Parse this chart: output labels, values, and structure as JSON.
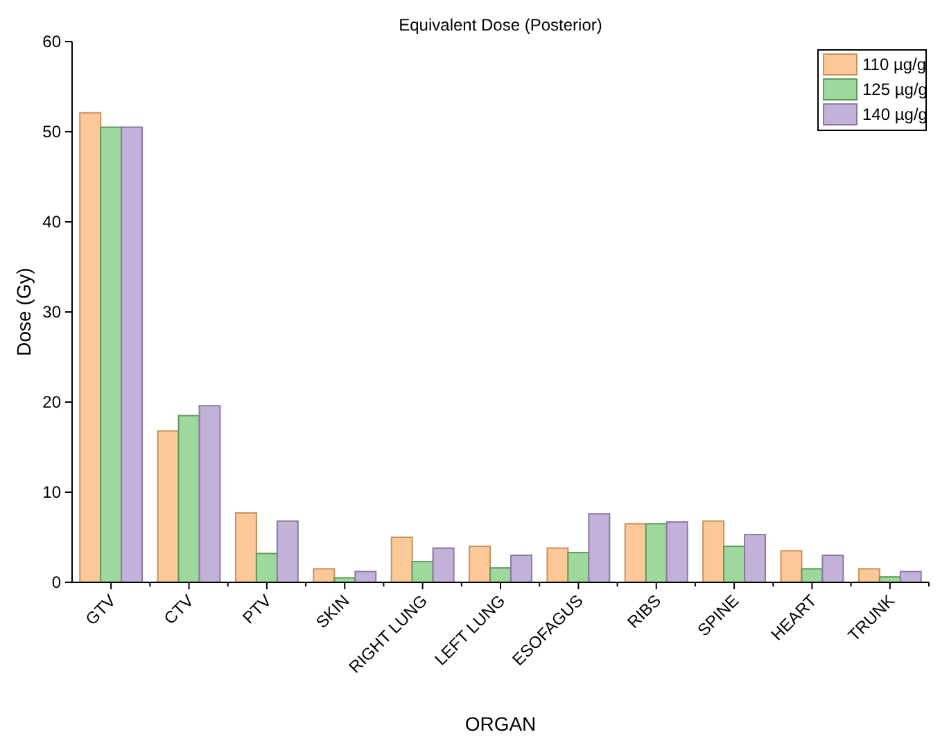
{
  "chart_data": {
    "type": "bar",
    "title": "Equivalent Dose (Posterior)",
    "xlabel": "ORGAN",
    "ylabel": "Dose (Gy)",
    "categories": [
      "GTV",
      "CTV",
      "PTV",
      "SKIN",
      "RIGHT LUNG",
      "LEFT LUNG",
      "ESOFAGUS",
      "RIBS",
      "SPINE",
      "HEART",
      "TRUNK"
    ],
    "series": [
      {
        "name": "110 µg/g",
        "color": "#fbc897",
        "values": [
          52.1,
          16.8,
          7.7,
          1.5,
          5.0,
          4.0,
          3.8,
          6.5,
          6.8,
          3.5,
          1.5
        ]
      },
      {
        "name": "125 µg/g",
        "color": "#9ed89c",
        "values": [
          50.5,
          18.5,
          3.2,
          0.5,
          2.3,
          1.6,
          3.3,
          6.5,
          4.0,
          1.5,
          0.6
        ]
      },
      {
        "name": "140 µg/g",
        "color": "#c2b1d8",
        "values": [
          50.5,
          19.6,
          6.8,
          1.2,
          3.8,
          3.0,
          7.6,
          6.7,
          5.3,
          3.0,
          1.2
        ]
      }
    ],
    "ylim": [
      0,
      60
    ],
    "yticks": [
      0,
      10,
      20,
      30,
      40,
      50,
      60
    ],
    "grid": false,
    "legend": "top right"
  }
}
